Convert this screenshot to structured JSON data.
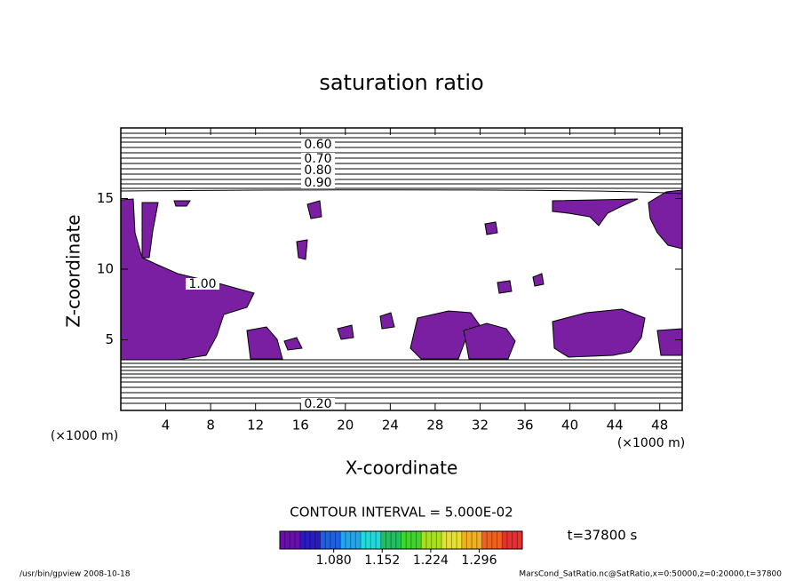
{
  "chart_data": {
    "type": "contour",
    "title": "saturation ratio",
    "x_label": "X-coordinate",
    "y_label": "Z-coordinate",
    "x_unit": "(×1000 m)",
    "y_unit": "(×1000 m)",
    "xlim": [
      0,
      50
    ],
    "xticks": [
      4,
      8,
      12,
      16,
      20,
      24,
      28,
      32,
      36,
      40,
      44,
      48
    ],
    "ylim": [
      0,
      20
    ],
    "yticks": [
      5,
      10,
      15
    ],
    "fill_color": "#7b1fa2",
    "contour_labels": [
      "0.60",
      "0.70",
      "0.80",
      "0.90",
      "1.00",
      "0.20"
    ],
    "contour_interval_label": "CONTOUR INTERVAL = 5.000E-02",
    "time_label": "t=37800 s",
    "colorbar": {
      "range": [
        1.0,
        1.36
      ],
      "ticks": [
        {
          "value": 1.08,
          "label": "1.080"
        },
        {
          "value": 1.152,
          "label": "1.152"
        },
        {
          "value": 1.224,
          "label": "1.224"
        },
        {
          "value": 1.296,
          "label": "1.296"
        }
      ],
      "colors": [
        "#6a0dad",
        "#2b1bbf",
        "#1f5fe0",
        "#1fa6ef",
        "#22d8d8",
        "#20c060",
        "#3ed62a",
        "#a8e020",
        "#e8e030",
        "#f0b020",
        "#f06020",
        "#e83030"
      ]
    },
    "footer_left": "/usr/bin/gpview   2008-10-18",
    "footer_right": "MarsCond_SatRatio.nc@SatRatio,x=0:50000,z=0:20000,t=37800"
  }
}
